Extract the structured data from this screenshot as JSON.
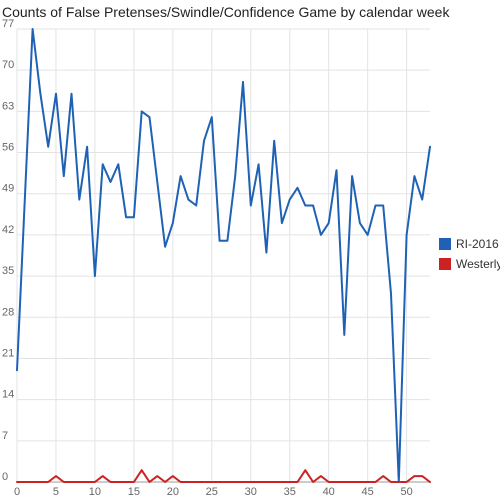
{
  "chart_data": {
    "type": "line",
    "title": "Counts of False Pretenses/Swindle/Confidence Game by calendar week",
    "xlabel": "",
    "ylabel": "",
    "xlim": [
      0,
      53
    ],
    "ylim": [
      0,
      77
    ],
    "x_ticks": [
      0,
      5,
      10,
      15,
      20,
      25,
      30,
      35,
      40,
      45,
      50
    ],
    "y_ticks": [
      0,
      7,
      14,
      21,
      28,
      35,
      42,
      49,
      56,
      63,
      70,
      77
    ],
    "grid": true,
    "legend_position": "right",
    "x": [
      0,
      1,
      2,
      3,
      4,
      5,
      6,
      7,
      8,
      9,
      10,
      11,
      12,
      13,
      14,
      15,
      16,
      17,
      18,
      19,
      20,
      21,
      22,
      23,
      24,
      25,
      26,
      27,
      28,
      29,
      30,
      31,
      32,
      33,
      34,
      35,
      36,
      37,
      38,
      39,
      40,
      41,
      42,
      43,
      44,
      45,
      46,
      47,
      48,
      49,
      50,
      51,
      52,
      53
    ],
    "series": [
      {
        "name": "RI-2016",
        "color": "#1f62b5",
        "values": [
          19,
          48,
          77,
          66,
          57,
          66,
          52,
          66,
          48,
          57,
          35,
          54,
          51,
          54,
          45,
          45,
          63,
          62,
          51,
          40,
          44,
          52,
          48,
          47,
          58,
          62,
          41,
          41,
          52,
          68,
          47,
          54,
          39,
          58,
          44,
          48,
          50,
          47,
          47,
          42,
          44,
          53,
          25,
          52,
          44,
          42,
          47,
          47,
          32,
          0,
          42,
          52,
          48,
          57
        ]
      },
      {
        "name": "Westerly",
        "color": "#cc2222",
        "values": [
          0,
          0,
          0,
          0,
          0,
          1,
          0,
          0,
          0,
          0,
          0,
          1,
          0,
          0,
          0,
          0,
          2,
          0,
          1,
          0,
          1,
          0,
          0,
          0,
          0,
          0,
          0,
          0,
          0,
          0,
          0,
          0,
          0,
          0,
          0,
          0,
          0,
          2,
          0,
          1,
          0,
          0,
          0,
          0,
          0,
          0,
          0,
          1,
          0,
          0,
          0,
          1,
          1,
          0
        ]
      }
    ]
  }
}
